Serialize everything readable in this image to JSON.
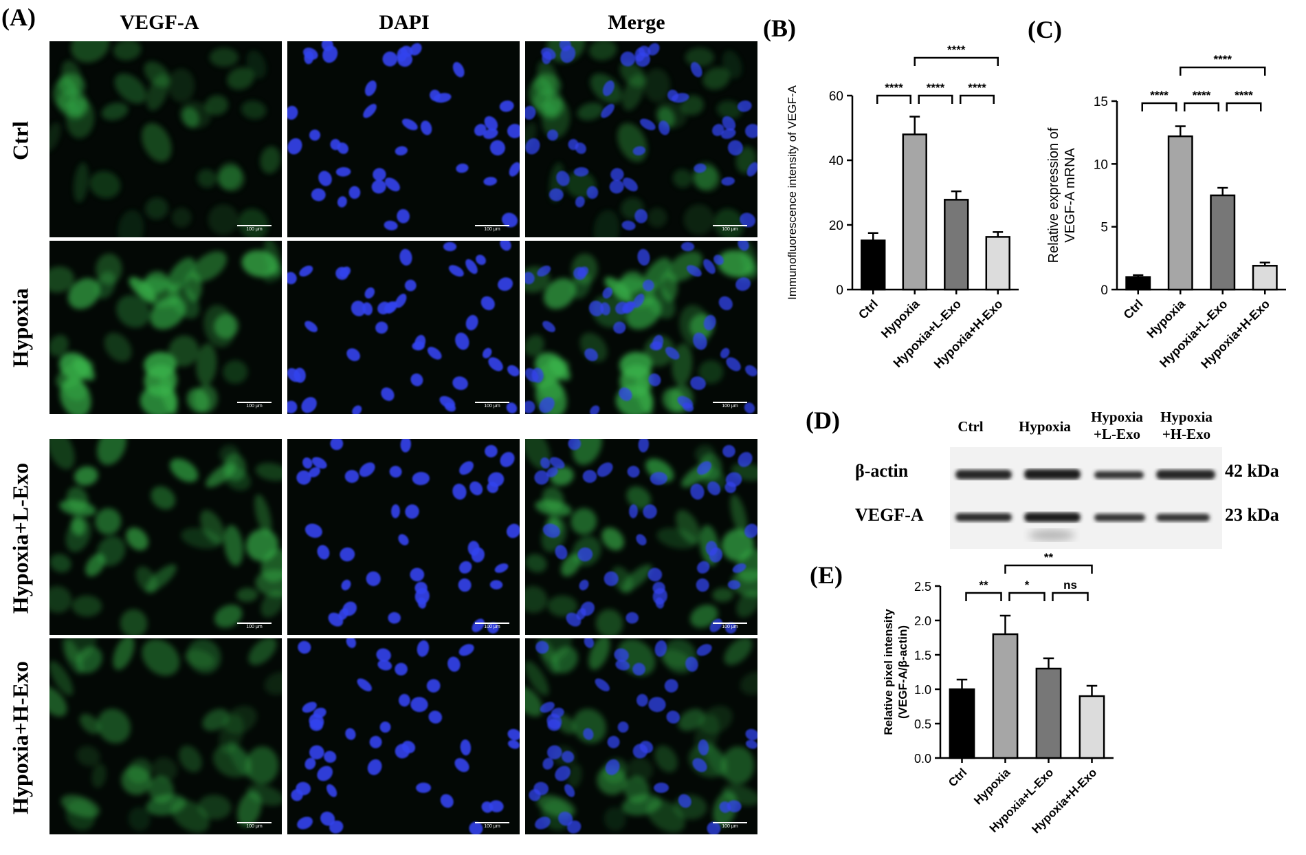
{
  "panels": {
    "a": "(A)",
    "b": "(B)",
    "c": "(C)",
    "d": "(D)",
    "e": "(E)"
  },
  "microscopy": {
    "columns": [
      "VEGF-A",
      "DAPI",
      "Merge"
    ],
    "rows": [
      "Ctrl",
      "Hypoxia",
      "Hypoxia+L-Exo",
      "Hypoxia+H-Exo"
    ],
    "scale_bar": "100 μm",
    "colors": {
      "green": "#38b44a",
      "blue": "#3344ee",
      "background": "#030805"
    }
  },
  "western": {
    "lanes": [
      "Ctrl",
      "Hypoxia",
      "Hypoxia\n+L-Exo",
      "Hypoxia\n+H-Exo"
    ],
    "lane_lines": [
      [
        "Ctrl"
      ],
      [
        "Hypoxia"
      ],
      [
        "Hypoxia",
        "+L-Exo"
      ],
      [
        "Hypoxia",
        "+H-Exo"
      ]
    ],
    "bands": [
      {
        "name": "β-actin",
        "size": "42 kDa"
      },
      {
        "name": "VEGF-A",
        "size": "23 kDa"
      }
    ]
  },
  "chart_data": [
    {
      "type": "bar",
      "panel": "B",
      "categories": [
        "Ctrl",
        "Hypoxia",
        "Hypoxia+L-Exo",
        "Hypoxia+H-Exo"
      ],
      "values": [
        15.2,
        48.0,
        27.8,
        16.3
      ],
      "errors": [
        2.3,
        5.5,
        2.6,
        1.5
      ],
      "colors": [
        "#000000",
        "#a6a6a6",
        "#777777",
        "#dcdcdc"
      ],
      "ylabel": "Immunofluorescence intensity of VEGF-A",
      "ylim": [
        0,
        60
      ],
      "yticks": [
        0,
        20,
        40,
        60
      ],
      "significance": [
        {
          "from": 0,
          "to": 1,
          "label": "****",
          "level": 0
        },
        {
          "from": 1,
          "to": 2,
          "label": "****",
          "level": 0
        },
        {
          "from": 2,
          "to": 3,
          "label": "****",
          "level": 0
        },
        {
          "from": 1,
          "to": 3,
          "label": "****",
          "level": 1
        }
      ]
    },
    {
      "type": "bar",
      "panel": "C",
      "categories": [
        "Ctrl",
        "Hypoxia",
        "Hypoxia+L-Exo",
        "Hypoxia+H-Exo"
      ],
      "values": [
        1.0,
        12.2,
        7.5,
        1.9
      ],
      "errors": [
        0.15,
        0.8,
        0.6,
        0.25
      ],
      "colors": [
        "#000000",
        "#a6a6a6",
        "#777777",
        "#dcdcdc"
      ],
      "ylabel": "Relative expression of VEGF-A mRNA",
      "ylabel_lines": [
        "Relative expression of",
        "VEGF-A mRNA"
      ],
      "ylim": [
        0,
        15
      ],
      "yticks": [
        0,
        5,
        10,
        15
      ],
      "significance": [
        {
          "from": 0,
          "to": 1,
          "label": "****",
          "level": 0
        },
        {
          "from": 1,
          "to": 2,
          "label": "****",
          "level": 0
        },
        {
          "from": 2,
          "to": 3,
          "label": "****",
          "level": 0
        },
        {
          "from": 1,
          "to": 3,
          "label": "****",
          "level": 1
        }
      ]
    },
    {
      "type": "bar",
      "panel": "E",
      "categories": [
        "Ctrl",
        "Hypoxia",
        "Hypoxia+L-Exo",
        "Hypoxia+H-Exo"
      ],
      "values": [
        1.0,
        1.8,
        1.3,
        0.9
      ],
      "errors": [
        0.14,
        0.27,
        0.15,
        0.15
      ],
      "colors": [
        "#000000",
        "#a6a6a6",
        "#777777",
        "#dcdcdc"
      ],
      "ylabel": "Relative pixel intensity (VEGF-A/β-actin)",
      "ylabel_lines": [
        "Relative pixel intensity",
        "(VEGF-A/β-actin)"
      ],
      "ylim": [
        0,
        2.5
      ],
      "yticks": [
        "0.0",
        "0.5",
        "1.0",
        "1.5",
        "2.0",
        "2.5"
      ],
      "significance": [
        {
          "from": 0,
          "to": 1,
          "label": "**",
          "level": 0
        },
        {
          "from": 1,
          "to": 2,
          "label": "*",
          "level": 0
        },
        {
          "from": 2,
          "to": 3,
          "label": "ns",
          "level": 0
        },
        {
          "from": 1,
          "to": 3,
          "label": "**",
          "level": 1
        }
      ]
    }
  ]
}
